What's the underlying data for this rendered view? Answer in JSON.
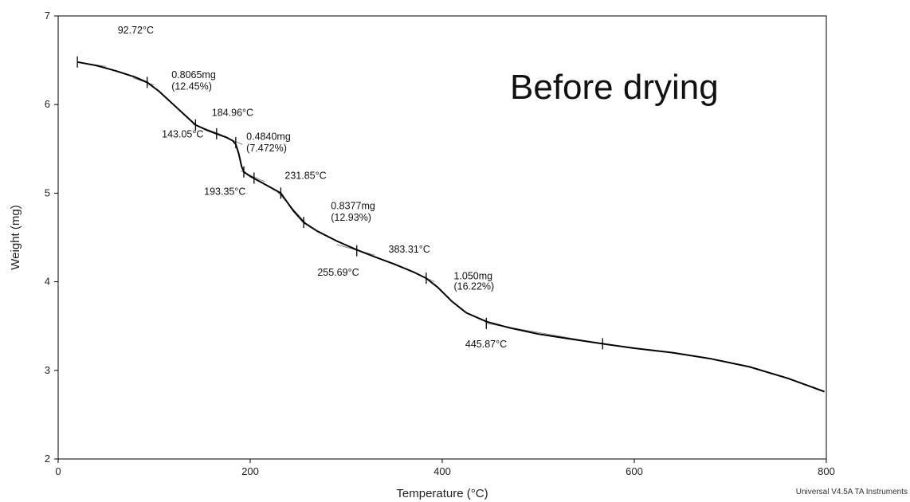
{
  "chart_data": {
    "type": "line",
    "title": "Before drying",
    "xlabel": "Temperature (°C)",
    "ylabel": "Weight (mg)",
    "xlim": [
      0,
      800
    ],
    "ylim": [
      2,
      7
    ],
    "x_ticks": [
      0,
      200,
      400,
      600,
      800
    ],
    "y_ticks": [
      2,
      3,
      4,
      5,
      6,
      7
    ],
    "grid": false,
    "footer": "Universal V4.5A TA Instruments",
    "colors": {
      "curve": "#000000",
      "tangent": "#888888"
    },
    "series": [
      {
        "x": [
          20,
          40,
          60,
          80,
          92.72,
          105,
          120,
          135,
          143.05,
          155,
          165,
          175,
          182,
          184.96,
          188,
          191,
          193.35,
          200,
          212,
          222,
          231.85,
          245,
          255.69,
          270,
          290,
          311,
          330,
          350,
          370,
          383.31,
          395,
          410,
          425,
          445.87,
          470,
          500,
          530,
          567,
          600,
          640,
          680,
          720,
          760,
          798
        ],
        "y": [
          6.48,
          6.44,
          6.38,
          6.31,
          6.25,
          6.15,
          6.0,
          5.85,
          5.77,
          5.71,
          5.67,
          5.63,
          5.59,
          5.55,
          5.45,
          5.3,
          5.24,
          5.19,
          5.12,
          5.06,
          5.0,
          4.8,
          4.67,
          4.57,
          4.46,
          4.36,
          4.28,
          4.2,
          4.11,
          4.04,
          3.94,
          3.78,
          3.65,
          3.55,
          3.48,
          3.41,
          3.36,
          3.3,
          3.25,
          3.2,
          3.13,
          3.04,
          2.91,
          2.76
        ]
      }
    ],
    "step_markers": [
      {
        "x": 20,
        "y": 6.48
      },
      {
        "x": 92.72,
        "y": 6.25
      },
      {
        "x": 143.05,
        "y": 5.77
      },
      {
        "x": 165,
        "y": 5.67
      },
      {
        "x": 184.96,
        "y": 5.57
      },
      {
        "x": 193.35,
        "y": 5.24
      },
      {
        "x": 204,
        "y": 5.17
      },
      {
        "x": 231.85,
        "y": 5.0
      },
      {
        "x": 255.69,
        "y": 4.67
      },
      {
        "x": 311,
        "y": 4.35
      },
      {
        "x": 383.31,
        "y": 4.04
      },
      {
        "x": 445.87,
        "y": 3.53
      },
      {
        "x": 567,
        "y": 3.3
      }
    ],
    "tangents": [
      {
        "x1": 20,
        "y1": 6.48,
        "x2": 50,
        "y2": 6.43
      },
      {
        "x1": 78,
        "y1": 6.3,
        "x2": 100,
        "y2": 6.22
      },
      {
        "x1": 140,
        "y1": 5.78,
        "x2": 170,
        "y2": 5.66
      },
      {
        "x1": 165,
        "y1": 5.67,
        "x2": 192,
        "y2": 5.55
      },
      {
        "x1": 190,
        "y1": 5.25,
        "x2": 215,
        "y2": 5.13
      },
      {
        "x1": 228,
        "y1": 5.02,
        "x2": 258,
        "y2": 4.66
      },
      {
        "x1": 290,
        "y1": 4.42,
        "x2": 330,
        "y2": 4.3
      },
      {
        "x1": 375,
        "y1": 4.08,
        "x2": 392,
        "y2": 4.0
      },
      {
        "x1": 446,
        "y1": 3.53,
        "x2": 567,
        "y2": 3.3
      }
    ],
    "annotations": [
      {
        "text": "92.72°C",
        "x": 62,
        "y": 6.8
      },
      {
        "text": "0.8065mg",
        "x": 118,
        "y": 6.3
      },
      {
        "text": "(12.45%)",
        "x": 118,
        "y": 6.17
      },
      {
        "text": "184.96°C",
        "x": 160,
        "y": 5.87
      },
      {
        "text": "143.05°C",
        "x": 108,
        "y": 5.63
      },
      {
        "text": "0.4840mg",
        "x": 196,
        "y": 5.6
      },
      {
        "text": "(7.472%)",
        "x": 196,
        "y": 5.47
      },
      {
        "text": "231.85°C",
        "x": 236,
        "y": 5.16
      },
      {
        "text": "193.35°C",
        "x": 152,
        "y": 4.98
      },
      {
        "text": "0.8377mg",
        "x": 284,
        "y": 4.82
      },
      {
        "text": "(12.93%)",
        "x": 284,
        "y": 4.69
      },
      {
        "text": "383.31°C",
        "x": 344,
        "y": 4.33
      },
      {
        "text": "255.69°C",
        "x": 270,
        "y": 4.07
      },
      {
        "text": "1.050mg",
        "x": 412,
        "y": 4.03
      },
      {
        "text": "(16.22%)",
        "x": 412,
        "y": 3.91
      },
      {
        "text": "445.87°C",
        "x": 424,
        "y": 3.26
      }
    ]
  }
}
